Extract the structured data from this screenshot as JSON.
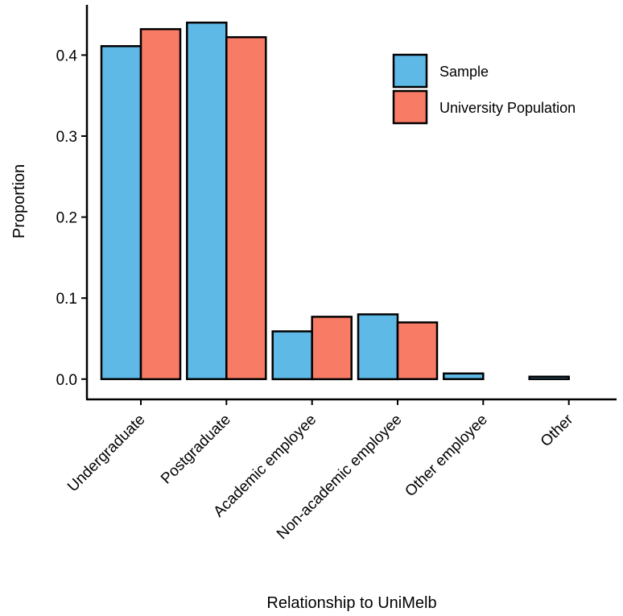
{
  "chart_data": {
    "type": "bar",
    "xlabel": "Relationship to UniMelb",
    "ylabel": "Proportion",
    "categories": [
      "Undergraduate",
      "Postgraduate",
      "Academic employee",
      "Non-academic employee",
      "Other employee",
      "Other"
    ],
    "series": [
      {
        "name": "Sample",
        "color": "#5eb9e6",
        "values": [
          0.411,
          0.44,
          0.059,
          0.08,
          0.007,
          0.003
        ]
      },
      {
        "name": "University Population",
        "color": "#f87b66",
        "values": [
          0.432,
          0.422,
          0.077,
          0.07,
          0.0,
          0.0
        ]
      }
    ],
    "yticks": [
      "0.0",
      "0.1",
      "0.2",
      "0.3",
      "0.4"
    ],
    "ylim": [
      -0.025,
      0.462
    ],
    "grid": false,
    "legend_position": "top-right",
    "bar_outline_color": "#000000"
  }
}
